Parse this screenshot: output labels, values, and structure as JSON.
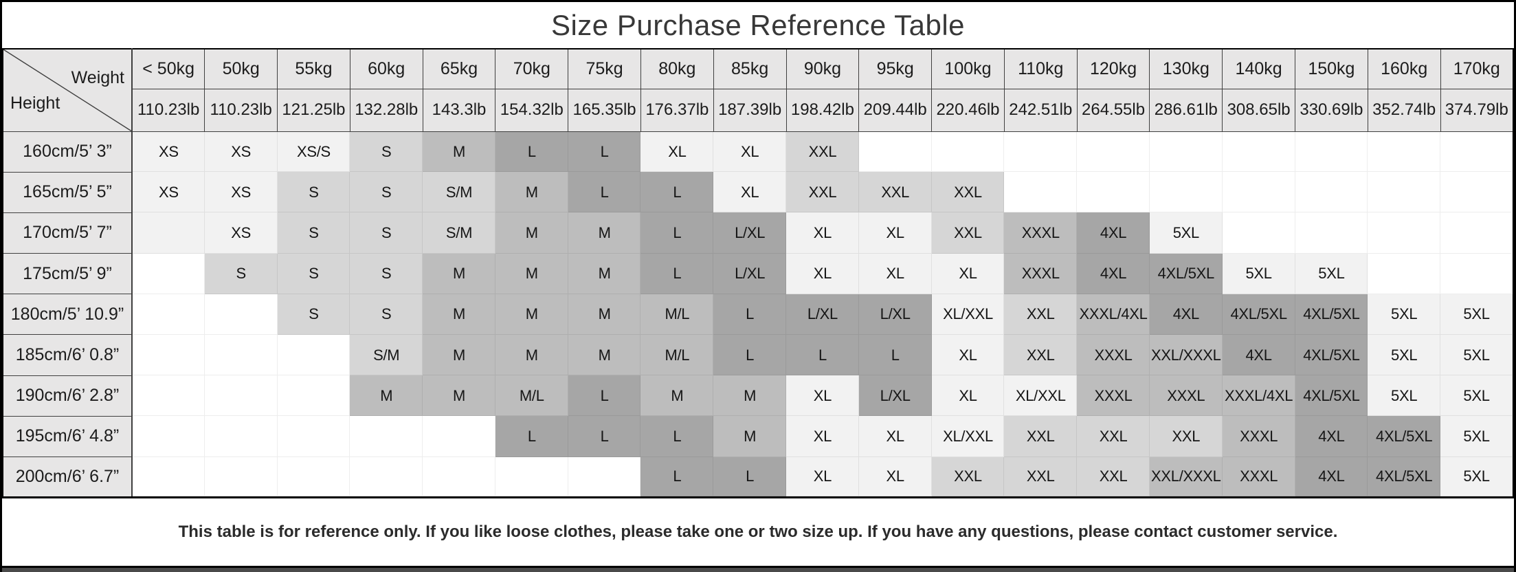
{
  "title": "Size Purchase Reference Table",
  "corner": {
    "weight_label": "Weight",
    "height_label": "Height"
  },
  "columns": [
    {
      "kg": "< 50kg",
      "lb": "110.23lb"
    },
    {
      "kg": "50kg",
      "lb": "110.23lb"
    },
    {
      "kg": "55kg",
      "lb": "121.25lb"
    },
    {
      "kg": "60kg",
      "lb": "132.28lb"
    },
    {
      "kg": "65kg",
      "lb": "143.3lb"
    },
    {
      "kg": "70kg",
      "lb": "154.32lb"
    },
    {
      "kg": "75kg",
      "lb": "165.35lb"
    },
    {
      "kg": "80kg",
      "lb": "176.37lb"
    },
    {
      "kg": "85kg",
      "lb": "187.39lb"
    },
    {
      "kg": "90kg",
      "lb": "198.42lb"
    },
    {
      "kg": "95kg",
      "lb": "209.44lb"
    },
    {
      "kg": "100kg",
      "lb": "220.46lb"
    },
    {
      "kg": "110kg",
      "lb": "242.51lb"
    },
    {
      "kg": "120kg",
      "lb": "264.55lb"
    },
    {
      "kg": "130kg",
      "lb": "286.61lb"
    },
    {
      "kg": "140kg",
      "lb": "308.65lb"
    },
    {
      "kg": "150kg",
      "lb": "330.69lb"
    },
    {
      "kg": "160kg",
      "lb": "352.74lb"
    },
    {
      "kg": "170kg",
      "lb": "374.79lb"
    }
  ],
  "rows": [
    {
      "height": "160cm/5’ 3”",
      "cells": [
        [
          "XS",
          "a"
        ],
        [
          "XS",
          "a"
        ],
        [
          "XS/S",
          "a"
        ],
        [
          "S",
          "b"
        ],
        [
          "M",
          "c"
        ],
        [
          "L",
          "d"
        ],
        [
          "L",
          "d"
        ],
        [
          "XL",
          "a"
        ],
        [
          "XL",
          "a"
        ],
        [
          "XXL",
          "b"
        ],
        [
          "",
          "w"
        ],
        [
          "",
          "w"
        ],
        [
          "",
          "w"
        ],
        [
          "",
          "w"
        ],
        [
          "",
          "w"
        ],
        [
          "",
          "w"
        ],
        [
          "",
          "w"
        ],
        [
          "",
          "w"
        ],
        [
          "",
          "w"
        ]
      ]
    },
    {
      "height": "165cm/5’ 5”",
      "cells": [
        [
          "XS",
          "a"
        ],
        [
          "XS",
          "a"
        ],
        [
          "S",
          "b"
        ],
        [
          "S",
          "b"
        ],
        [
          "S/M",
          "b"
        ],
        [
          "M",
          "c"
        ],
        [
          "L",
          "d"
        ],
        [
          "L",
          "d"
        ],
        [
          "XL",
          "a"
        ],
        [
          "XXL",
          "b"
        ],
        [
          "XXL",
          "b"
        ],
        [
          "XXL",
          "b"
        ],
        [
          "",
          "w"
        ],
        [
          "",
          "w"
        ],
        [
          "",
          "w"
        ],
        [
          "",
          "w"
        ],
        [
          "",
          "w"
        ],
        [
          "",
          "w"
        ],
        [
          "",
          "w"
        ]
      ]
    },
    {
      "height": "170cm/5’ 7”",
      "cells": [
        [
          "",
          "a"
        ],
        [
          "XS",
          "a"
        ],
        [
          "S",
          "b"
        ],
        [
          "S",
          "b"
        ],
        [
          "S/M",
          "b"
        ],
        [
          "M",
          "c"
        ],
        [
          "M",
          "c"
        ],
        [
          "L",
          "d"
        ],
        [
          "L/XL",
          "d"
        ],
        [
          "XL",
          "a"
        ],
        [
          "XL",
          "a"
        ],
        [
          "XXL",
          "b"
        ],
        [
          "XXXL",
          "c"
        ],
        [
          "4XL",
          "d"
        ],
        [
          "5XL",
          "a"
        ],
        [
          "",
          "w"
        ],
        [
          "",
          "w"
        ],
        [
          "",
          "w"
        ],
        [
          "",
          "w"
        ]
      ]
    },
    {
      "height": "175cm/5’ 9”",
      "cells": [
        [
          "",
          "w"
        ],
        [
          "S",
          "b"
        ],
        [
          "S",
          "b"
        ],
        [
          "S",
          "b"
        ],
        [
          "M",
          "c"
        ],
        [
          "M",
          "c"
        ],
        [
          "M",
          "c"
        ],
        [
          "L",
          "d"
        ],
        [
          "L/XL",
          "d"
        ],
        [
          "XL",
          "a"
        ],
        [
          "XL",
          "a"
        ],
        [
          "XL",
          "a"
        ],
        [
          "XXXL",
          "c"
        ],
        [
          "4XL",
          "d"
        ],
        [
          "4XL/5XL",
          "d"
        ],
        [
          "5XL",
          "a"
        ],
        [
          "5XL",
          "a"
        ],
        [
          "",
          "w"
        ],
        [
          "",
          "w"
        ]
      ]
    },
    {
      "height": "180cm/5’ 10.9”",
      "cells": [
        [
          "",
          "w"
        ],
        [
          "",
          "w"
        ],
        [
          "S",
          "b"
        ],
        [
          "S",
          "b"
        ],
        [
          "M",
          "c"
        ],
        [
          "M",
          "c"
        ],
        [
          "M",
          "c"
        ],
        [
          "M/L",
          "c"
        ],
        [
          "L",
          "d"
        ],
        [
          "L/XL",
          "d"
        ],
        [
          "L/XL",
          "d"
        ],
        [
          "XL/XXL",
          "a"
        ],
        [
          "XXL",
          "b"
        ],
        [
          "XXXL/4XL",
          "c"
        ],
        [
          "4XL",
          "d"
        ],
        [
          "4XL/5XL",
          "d"
        ],
        [
          "4XL/5XL",
          "d"
        ],
        [
          "5XL",
          "a"
        ],
        [
          "5XL",
          "a"
        ]
      ]
    },
    {
      "height": "185cm/6’ 0.8”",
      "cells": [
        [
          "",
          "w"
        ],
        [
          "",
          "w"
        ],
        [
          "",
          "w"
        ],
        [
          "S/M",
          "b"
        ],
        [
          "M",
          "c"
        ],
        [
          "M",
          "c"
        ],
        [
          "M",
          "c"
        ],
        [
          "M/L",
          "c"
        ],
        [
          "L",
          "d"
        ],
        [
          "L",
          "d"
        ],
        [
          "L",
          "d"
        ],
        [
          "XL",
          "a"
        ],
        [
          "XXL",
          "b"
        ],
        [
          "XXXL",
          "c"
        ],
        [
          "XXL/XXXL",
          "c"
        ],
        [
          "4XL",
          "d"
        ],
        [
          "4XL/5XL",
          "d"
        ],
        [
          "5XL",
          "a"
        ],
        [
          "5XL",
          "a"
        ]
      ]
    },
    {
      "height": "190cm/6’ 2.8”",
      "cells": [
        [
          "",
          "w"
        ],
        [
          "",
          "w"
        ],
        [
          "",
          "w"
        ],
        [
          "M",
          "c"
        ],
        [
          "M",
          "c"
        ],
        [
          "M/L",
          "c"
        ],
        [
          "L",
          "d"
        ],
        [
          "M",
          "c"
        ],
        [
          "M",
          "c"
        ],
        [
          "XL",
          "a"
        ],
        [
          "L/XL",
          "d"
        ],
        [
          "XL",
          "a"
        ],
        [
          "XL/XXL",
          "a"
        ],
        [
          "XXXL",
          "c"
        ],
        [
          "XXXL",
          "c"
        ],
        [
          "XXXL/4XL",
          "c"
        ],
        [
          "4XL/5XL",
          "d"
        ],
        [
          "5XL",
          "a"
        ],
        [
          "5XL",
          "a"
        ]
      ]
    },
    {
      "height": "195cm/6’ 4.8”",
      "cells": [
        [
          "",
          "w"
        ],
        [
          "",
          "w"
        ],
        [
          "",
          "w"
        ],
        [
          "",
          "w"
        ],
        [
          "",
          "w"
        ],
        [
          "L",
          "d"
        ],
        [
          "L",
          "d"
        ],
        [
          "L",
          "d"
        ],
        [
          "M",
          "c"
        ],
        [
          "XL",
          "a"
        ],
        [
          "XL",
          "a"
        ],
        [
          "XL/XXL",
          "a"
        ],
        [
          "XXL",
          "b"
        ],
        [
          "XXL",
          "b"
        ],
        [
          "XXL",
          "b"
        ],
        [
          "XXXL",
          "c"
        ],
        [
          "4XL",
          "d"
        ],
        [
          "4XL/5XL",
          "d"
        ],
        [
          "5XL",
          "a"
        ]
      ]
    },
    {
      "height": "200cm/6’ 6.7”",
      "cells": [
        [
          "",
          "w"
        ],
        [
          "",
          "w"
        ],
        [
          "",
          "w"
        ],
        [
          "",
          "w"
        ],
        [
          "",
          "w"
        ],
        [
          "",
          "w"
        ],
        [
          "",
          "w"
        ],
        [
          "L",
          "d"
        ],
        [
          "L",
          "d"
        ],
        [
          "XL",
          "a"
        ],
        [
          "XL",
          "a"
        ],
        [
          "XXL",
          "b"
        ],
        [
          "XXL",
          "b"
        ],
        [
          "XXL",
          "b"
        ],
        [
          "XXL/XXXL",
          "c"
        ],
        [
          "XXXL",
          "c"
        ],
        [
          "4XL",
          "d"
        ],
        [
          "4XL/5XL",
          "d"
        ],
        [
          "5XL",
          "a"
        ]
      ]
    }
  ],
  "footer": {
    "note": "This table is for reference only. If you like loose clothes, please take one or two size up. If you have any questions, please contact customer service."
  },
  "colors": {
    "shades": {
      "a": "#f2f2f2",
      "b": "#d6d6d6",
      "c": "#bdbdbd",
      "d": "#a6a6a6",
      "w": "#ffffff"
    },
    "header_bg": "#e7e6e6",
    "border_dark": "#3f3f3f",
    "bottom_bar": "#4a4a4a"
  }
}
